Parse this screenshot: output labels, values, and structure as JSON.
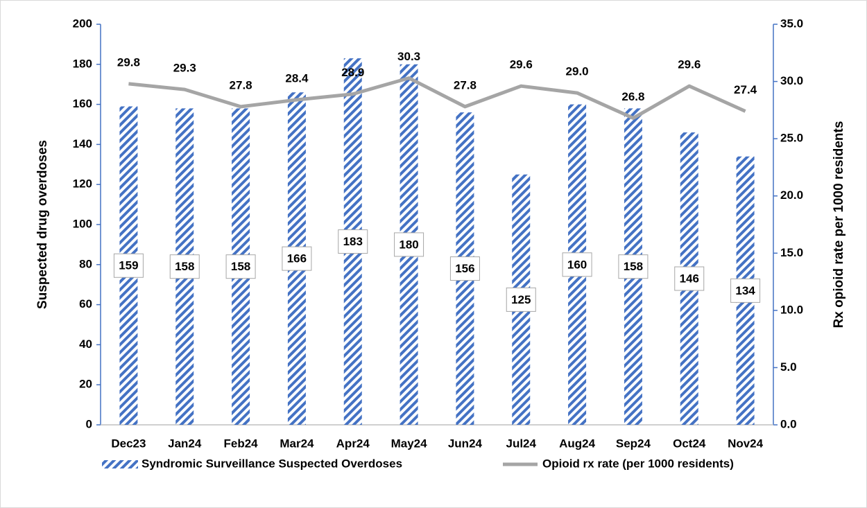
{
  "chart_data": {
    "type": "bar",
    "y_label": "Suspected drug overdoses",
    "y2_label": "Rx opioid rate per 1000 residents",
    "categories": [
      "Dec23",
      "Jan24",
      "Feb24",
      "Mar24",
      "Apr24",
      "May24",
      "Jun24",
      "Jul24",
      "Aug24",
      "Sep24",
      "Oct24",
      "Nov24"
    ],
    "series": [
      {
        "name": "Syndromic Surveillance Suspected Overdoses",
        "type": "bar",
        "color": "#4472c4",
        "values": [
          159,
          158,
          158,
          166,
          183,
          180,
          156,
          125,
          160,
          158,
          146,
          134
        ]
      },
      {
        "name": "Opioid rx rate (per 1000 residents)",
        "type": "line",
        "axis": "y2",
        "color": "#a5a5a5",
        "values": [
          29.8,
          29.3,
          27.8,
          28.4,
          28.9,
          30.3,
          27.8,
          29.6,
          29.0,
          26.8,
          29.6,
          27.4
        ],
        "value_labels": [
          "29.8",
          "29.3",
          "27.8",
          "28.4",
          "28.9",
          "30.3",
          "27.8",
          "29.6",
          "29.0",
          "26.8",
          "29.6",
          "27.4"
        ]
      }
    ],
    "ylim": [
      0,
      200
    ],
    "yticks": [
      0,
      20,
      40,
      60,
      80,
      100,
      120,
      140,
      160,
      180,
      200
    ],
    "y2lim": [
      0,
      35
    ],
    "y2ticks": [
      {
        "value": 0,
        "label": "0.0"
      },
      {
        "value": 5,
        "label": "5.0"
      },
      {
        "value": 10,
        "label": "10.0"
      },
      {
        "value": 15,
        "label": "15.0"
      },
      {
        "value": 20,
        "label": "20.0"
      },
      {
        "value": 25,
        "label": "25.0"
      },
      {
        "value": 30,
        "label": "30.0"
      },
      {
        "value": 35,
        "label": "35.0"
      }
    ],
    "legend": "bottom"
  }
}
